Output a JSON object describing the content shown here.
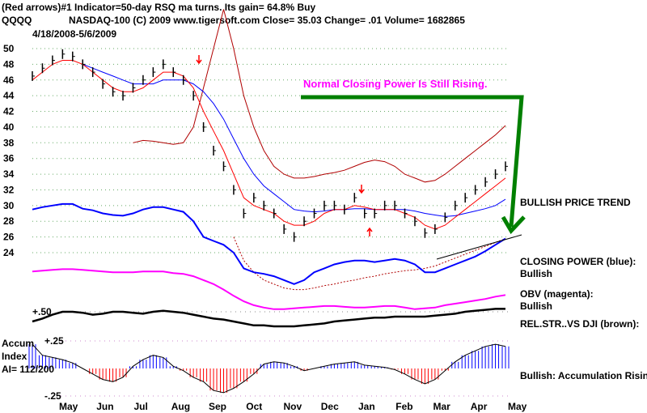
{
  "header": {
    "line1": "(Red arrows)#1 Indicator=50-day RSQ ma turns. Its gain= 64.8% Buy",
    "symbol": "QQQQ",
    "line2": "NASDAQ-100  (C) 2009 www.tigersoft.com    Close=  35.03  Change= .01 Volume= 1682865",
    "date_range": "4/18/2008-5/6/2009"
  },
  "annotations": {
    "headline": "Normal Closing Power Is Still Rising.",
    "trend": "BULLISH PRICE TREND",
    "cp_label": "CLOSING POWER (blue):",
    "cp_value": "Bullish",
    "obv_label": "OBV (magenta):",
    "obv_value": "Bullish",
    "rs_label": "REL.STR..VS DJI (brown):",
    "accum_value": "Bullish: Accumulation Rising",
    "accum_title1": "Accum",
    "accum_title2": "Index",
    "ai_value": "AI= 112/200"
  },
  "colors": {
    "price": "#000000",
    "ma_short": "#ff0000",
    "ma_long": "#0000ff",
    "band": "#b00000",
    "closing_power": "#0000ff",
    "obv": "#ff00ff",
    "headline": "#ff00ff",
    "arrow": "#008000",
    "accum_pos": "#0000ff",
    "accum_neg": "#ff0000"
  },
  "chart_data": {
    "type": "line",
    "x_ticks": [
      "May",
      "Jun",
      "Jul",
      "Aug",
      "Sep",
      "Oct",
      "Nov",
      "Dec",
      "Jan",
      "Feb",
      "Mar",
      "Apr",
      "May"
    ],
    "y_ticks": [
      "50",
      "48",
      "46",
      "44",
      "42",
      "40",
      "38",
      "36",
      "34",
      "32",
      "30",
      "28",
      "26",
      "24"
    ],
    "ylim": [
      24,
      50
    ],
    "rs_tick": "+.50",
    "accum_ticks": [
      "+.25",
      "-.25"
    ],
    "accum_ylim": [
      -0.25,
      0.25
    ],
    "grid": true,
    "price": [
      46.5,
      47.5,
      48.5,
      49.3,
      49,
      48,
      47,
      45.5,
      44.5,
      44,
      45,
      46,
      47,
      48,
      47,
      46,
      44,
      40,
      37,
      35,
      32,
      29,
      31,
      30,
      29,
      27,
      26,
      28,
      29,
      30,
      30,
      29.5,
      31,
      29,
      29,
      30,
      30,
      29,
      28,
      26.5,
      27,
      28.5,
      30,
      31,
      32,
      33,
      34,
      35
    ],
    "ma_short": [
      46,
      47,
      48,
      48.5,
      48.5,
      48,
      47,
      46,
      45,
      44.5,
      44.5,
      45,
      46,
      47,
      47,
      46.5,
      45,
      42,
      39.5,
      37,
      34,
      31,
      30,
      29.5,
      29,
      28,
      27.5,
      27.5,
      28,
      29,
      29.5,
      29.5,
      30,
      29.8,
      29.5,
      29.5,
      29.5,
      29,
      28.5,
      27.5,
      27,
      27.5,
      28.5,
      29.5,
      30.5,
      31.5,
      32.5,
      33.5
    ],
    "ma_long": [
      null,
      null,
      null,
      null,
      null,
      48,
      47.5,
      47,
      46.5,
      46,
      45.5,
      45.5,
      45.5,
      46,
      46,
      46,
      45.5,
      44.5,
      43,
      41,
      38.5,
      36,
      34,
      32.5,
      31.5,
      30.5,
      29.5,
      29.3,
      29.2,
      29.3,
      29.5,
      29.5,
      29.6,
      29.6,
      29.5,
      29.5,
      29.5,
      29.5,
      29.3,
      29,
      28.8,
      28.6,
      28.7,
      29,
      29.3,
      29.6,
      30,
      30.8
    ],
    "upper_band": [
      null,
      null,
      null,
      null,
      null,
      null,
      null,
      null,
      null,
      null,
      38,
      38.3,
      38.2,
      38,
      37.8,
      38,
      40,
      45,
      50,
      55,
      50,
      44,
      40,
      37,
      35,
      34,
      33.5,
      33.5,
      33.7,
      34,
      34.2,
      34.5,
      35,
      35.5,
      35.8,
      35.6,
      35,
      34,
      33.5,
      33,
      33.2,
      34,
      35,
      36,
      37,
      38,
      39,
      40.2
    ],
    "lower_band": [
      null,
      null,
      null,
      null,
      null,
      null,
      null,
      null,
      null,
      null,
      null,
      null,
      null,
      null,
      null,
      null,
      null,
      null,
      null,
      null,
      26,
      23,
      21.5,
      20.5,
      20,
      19.5,
      19.3,
      19.3,
      19.5,
      19.8,
      20,
      20.3,
      20.5,
      20.8,
      21,
      21.3,
      21.5,
      21.7,
      21.8,
      22,
      22.3,
      22.8,
      23.3,
      23.8,
      24.3,
      24.8,
      25.3,
      25.8
    ],
    "closing_power": [
      29.5,
      29.8,
      30,
      30.2,
      30.2,
      29.6,
      29.4,
      29,
      28.8,
      28.7,
      29,
      29.5,
      29.8,
      29.8,
      29.5,
      29.2,
      28,
      26,
      25.5,
      25,
      24,
      22,
      21.5,
      21.3,
      21,
      20.5,
      20,
      20.5,
      21.5,
      22,
      22.5,
      22.8,
      23,
      23,
      22.8,
      23,
      23.2,
      23,
      22.5,
      21.5,
      21.5,
      22,
      22.5,
      23,
      23.5,
      24.2,
      25,
      25.8
    ],
    "obv": [
      21.6,
      21.7,
      21.8,
      21.9,
      21.9,
      21.8,
      21.7,
      21.6,
      21.5,
      21.5,
      21.5,
      21.6,
      21.6,
      21.6,
      21.4,
      21.3,
      21,
      20.5,
      20,
      19.3,
      18.5,
      17.8,
      17.3,
      17,
      16.8,
      16.8,
      16.9,
      17,
      17.1,
      17.2,
      17.2,
      17.1,
      17,
      17,
      17.1,
      17.2,
      17.2,
      17,
      16.8,
      16.9,
      17,
      17.3,
      17.5,
      17.7,
      17.9,
      18.1,
      18.4,
      18.6
    ],
    "rel_strength": [
      0.4,
      0.43,
      0.47,
      0.5,
      0.5,
      0.49,
      0.47,
      0.48,
      0.5,
      0.5,
      0.49,
      0.48,
      0.5,
      0.51,
      0.5,
      0.49,
      0.47,
      0.45,
      0.43,
      0.42,
      0.4,
      0.38,
      0.36,
      0.36,
      0.35,
      0.35,
      0.35,
      0.36,
      0.37,
      0.38,
      0.4,
      0.41,
      0.42,
      0.43,
      0.44,
      0.44,
      0.45,
      0.45,
      0.45,
      0.45,
      0.46,
      0.47,
      0.48,
      0.5,
      0.51,
      0.52,
      0.53,
      0.53
    ],
    "accum_index": [
      0.22,
      0.12,
      0.1,
      0.08,
      0.05,
      0,
      -0.05,
      -0.1,
      -0.12,
      -0.08,
      0.02,
      0.08,
      0.12,
      0.1,
      0.02,
      -0.02,
      -0.08,
      -0.12,
      -0.2,
      -0.22,
      -0.18,
      -0.12,
      -0.05,
      0.04,
      0.06,
      0.05,
      0.02,
      -0.02,
      0,
      0.02,
      0.04,
      0.05,
      0.06,
      0.03,
      0.02,
      0.01,
      -0.01,
      -0.05,
      -0.1,
      -0.14,
      -0.1,
      -0.02,
      0.06,
      0.12,
      0.16,
      0.2,
      0.22,
      0.2
    ]
  }
}
